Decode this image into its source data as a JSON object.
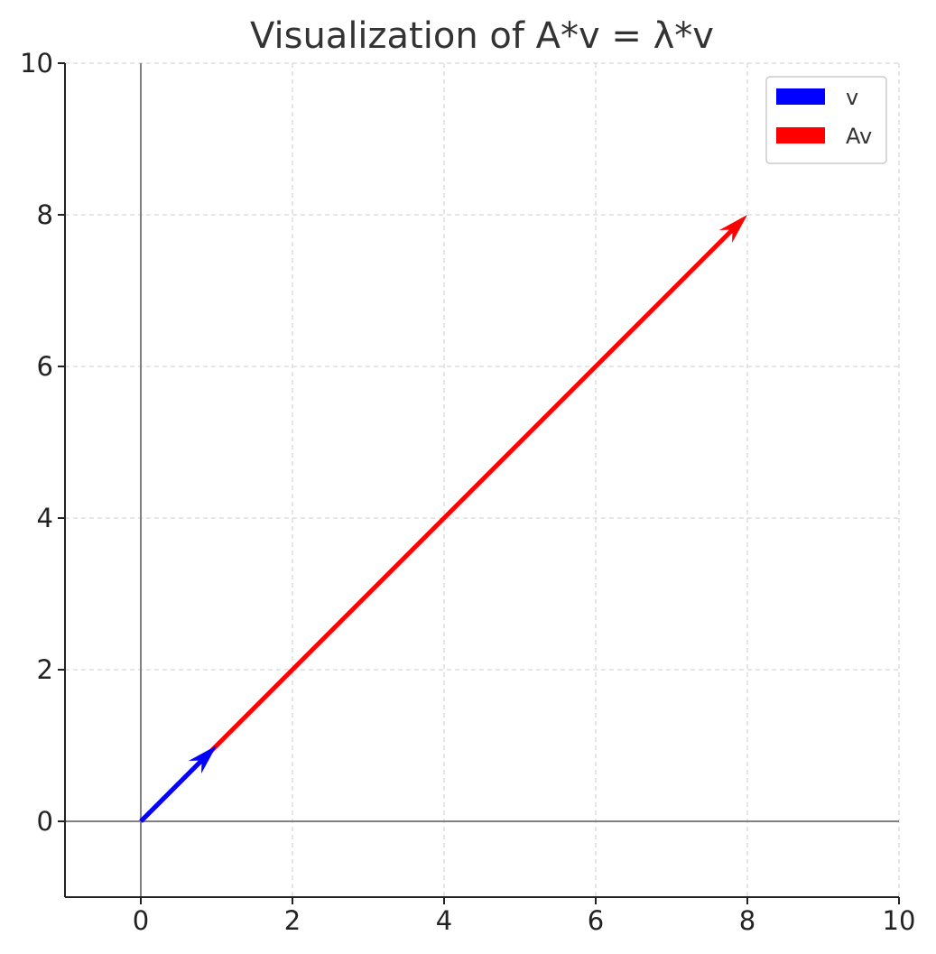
{
  "chart_data": {
    "type": "quiver",
    "title": "Visualization of A*v = λ*v",
    "xlabel": "",
    "ylabel": "",
    "xlim": [
      -1,
      10
    ],
    "ylim": [
      -1,
      10
    ],
    "xticks": [
      0,
      2,
      4,
      6,
      8,
      10
    ],
    "yticks": [
      0,
      2,
      4,
      6,
      8,
      10
    ],
    "grid": true,
    "legend_position": "top-right",
    "series": [
      {
        "name": "v",
        "color": "#0000ff",
        "start": [
          0,
          0
        ],
        "end": [
          1,
          1
        ]
      },
      {
        "name": "Av",
        "color": "#ff0000",
        "start": [
          0,
          0
        ],
        "end": [
          8,
          8
        ]
      }
    ]
  }
}
